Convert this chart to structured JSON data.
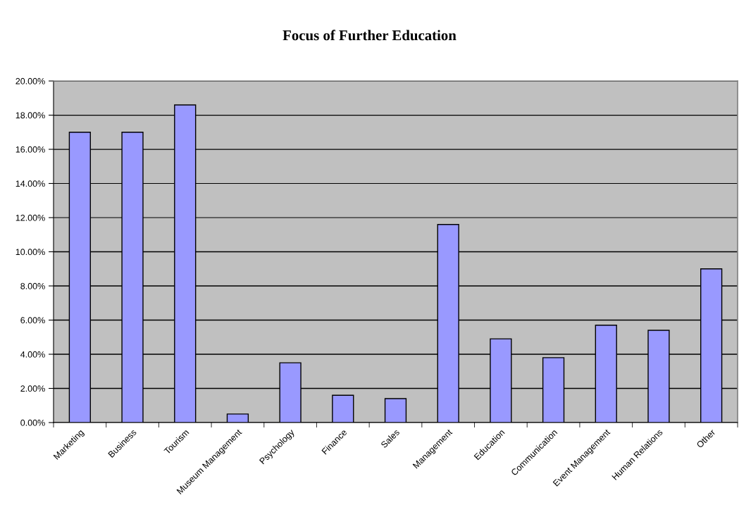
{
  "chart_data": {
    "type": "bar",
    "title": "Focus of Further Education",
    "categories": [
      "Marketing",
      "Business",
      "Tourism",
      "Museum Management",
      "Psychology",
      "Finance",
      "Sales",
      "Management",
      "Education",
      "Communication",
      "Event Management",
      "Human Relations",
      "Other"
    ],
    "values": [
      17.0,
      17.0,
      18.6,
      0.5,
      3.5,
      1.6,
      1.4,
      11.6,
      4.9,
      3.8,
      5.7,
      5.4,
      9.0
    ],
    "color": "#9999ff",
    "ylim": [
      0,
      20
    ],
    "yticks": [
      {
        "value": 0,
        "label": "0.00%"
      },
      {
        "value": 2,
        "label": "2.00%"
      },
      {
        "value": 4,
        "label": "4.00%"
      },
      {
        "value": 6,
        "label": "6.00%"
      },
      {
        "value": 8,
        "label": "8.00%"
      },
      {
        "value": 10,
        "label": "10.00%"
      },
      {
        "value": 12,
        "label": "12.00%"
      },
      {
        "value": 14,
        "label": "14.00%"
      },
      {
        "value": 16,
        "label": "16.00%"
      },
      {
        "value": 18,
        "label": "18.00%"
      },
      {
        "value": 20,
        "label": "20.00%"
      }
    ],
    "grid": "y",
    "legend": false
  }
}
